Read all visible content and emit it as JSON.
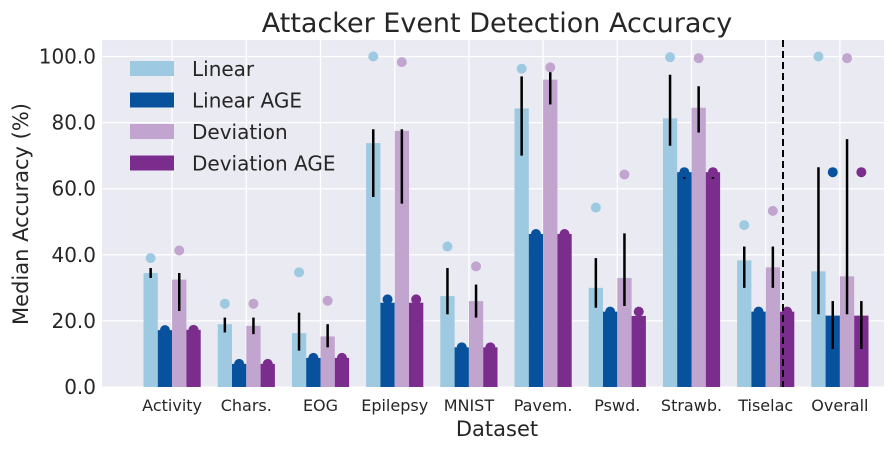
{
  "chart_data": {
    "type": "bar",
    "title": "Attacker Event Detection Accuracy",
    "xlabel": "Dataset",
    "ylabel": "Median Accuracy (%)",
    "ylim": [
      0,
      105
    ],
    "yticks": [
      "0.0",
      "20.0",
      "40.0",
      "60.0",
      "80.0",
      "100.0"
    ],
    "grid": true,
    "legend_position": "top-left",
    "categories": [
      "Activity",
      "Chars.",
      "EOG",
      "Epilepsy",
      "MNIST",
      "Pavem.",
      "Pswd.",
      "Strawb.",
      "Tiselac",
      "Overall"
    ],
    "series": [
      {
        "name": "Linear",
        "color": "#9ecae1",
        "values": [
          34.5,
          19,
          16.3,
          73.8,
          27.5,
          84.3,
          30,
          81.3,
          38.3,
          35
        ],
        "error": [
          [
            33,
            36
          ],
          [
            16.5,
            21
          ],
          [
            11,
            22.5
          ],
          [
            57.5,
            78
          ],
          [
            22,
            36
          ],
          [
            70,
            94
          ],
          [
            24,
            39
          ],
          [
            73,
            94.5
          ],
          [
            30,
            42.5
          ],
          [
            22,
            66.5
          ]
        ],
        "markers": [
          39,
          25.2,
          34.7,
          100,
          42.5,
          96.3,
          54.3,
          99.8,
          49,
          100
        ]
      },
      {
        "name": "Linear AGE",
        "color": "#08519c",
        "values": [
          17.2,
          7,
          8.8,
          25.5,
          12,
          46.3,
          22.8,
          65,
          22.8,
          21.6
        ],
        "error": [
          [
            17.2,
            17.2
          ],
          [
            7,
            7
          ],
          [
            8.8,
            8.8
          ],
          [
            25.5,
            27
          ],
          [
            12,
            12
          ],
          [
            46.3,
            46.3
          ],
          [
            21.5,
            24
          ],
          [
            63,
            66
          ],
          [
            22.8,
            22.8
          ],
          [
            11.5,
            26
          ]
        ],
        "markers": [
          17.2,
          7,
          8.8,
          26.5,
          12,
          46.3,
          22.8,
          65,
          22.8,
          65
        ]
      },
      {
        "name": "Deviation",
        "color": "#c2a5cf",
        "values": [
          32.5,
          18.5,
          15.3,
          77.5,
          26,
          93,
          33,
          84.5,
          36.2,
          33.5
        ],
        "error": [
          [
            23,
            34.5
          ],
          [
            16,
            21
          ],
          [
            12,
            19
          ],
          [
            55.5,
            78
          ],
          [
            21,
            31
          ],
          [
            85.5,
            95.5
          ],
          [
            24.5,
            46.5
          ],
          [
            77,
            91
          ],
          [
            30,
            42.5
          ],
          [
            22,
            75
          ]
        ],
        "markers": [
          41.3,
          25.2,
          26.1,
          98.3,
          36.5,
          96.7,
          64.3,
          99.5,
          53.3,
          99.5
        ]
      },
      {
        "name": "Deviation AGE",
        "color": "#7b2d8e",
        "values": [
          17.3,
          7,
          8.8,
          25.5,
          12,
          46.3,
          21.5,
          65,
          22.8,
          21.6
        ],
        "error": [
          [
            17.3,
            17.3
          ],
          [
            7,
            7
          ],
          [
            8.8,
            8.8
          ],
          [
            25.5,
            27
          ],
          [
            12,
            12
          ],
          [
            46.3,
            46.3
          ],
          [
            21.5,
            24
          ],
          [
            63,
            66
          ],
          [
            22.8,
            22.8
          ],
          [
            11.5,
            26
          ]
        ],
        "markers": [
          17.3,
          7,
          8.8,
          26.5,
          12,
          46.3,
          22.8,
          65,
          22.8,
          65
        ]
      }
    ],
    "annotations": [
      "dashed vertical separator before Overall"
    ]
  }
}
